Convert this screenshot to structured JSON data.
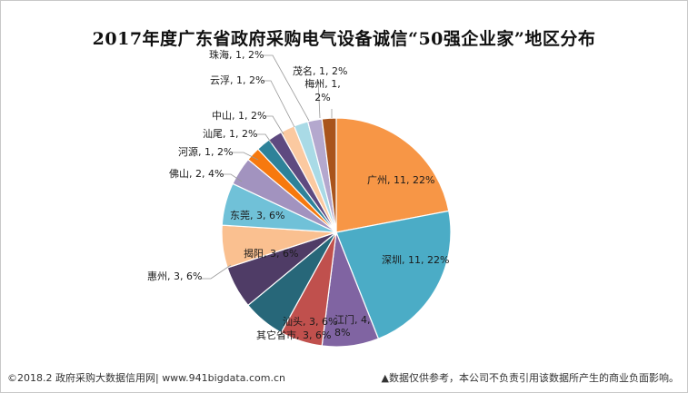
{
  "chart_data": {
    "type": "pie",
    "title": "2017年度广东省政府采购电气设备诚信“50强企业家”地区分布",
    "series": [
      {
        "category": "广州",
        "value": 11,
        "percent": "22%",
        "color": "#F79646",
        "label": "广州, 11, 22%"
      },
      {
        "category": "深圳",
        "value": 11,
        "percent": "22%",
        "color": "#4BACC6",
        "label": "深圳, 11, 22%"
      },
      {
        "category": "江门",
        "value": 4,
        "percent": "8%",
        "color": "#8064A2",
        "label": "江门, 4, 8%"
      },
      {
        "category": "汕头",
        "value": 3,
        "percent": "6%",
        "color": "#C0504D",
        "label": "汕头, 3, 6%"
      },
      {
        "category": "其它省市",
        "value": 3,
        "percent": "6%",
        "color": "#276779",
        "label": "其它省市, 3, 6%"
      },
      {
        "category": "惠州",
        "value": 3,
        "percent": "6%",
        "color": "#4F3C66",
        "label": "惠州, 3, 6%"
      },
      {
        "category": "揭阳",
        "value": 3,
        "percent": "6%",
        "color": "#FAC090",
        "label": "揭阳, 3, 6%"
      },
      {
        "category": "东莞",
        "value": 3,
        "percent": "6%",
        "color": "#70C1D8",
        "label": "东莞, 3, 6%"
      },
      {
        "category": "佛山",
        "value": 2,
        "percent": "4%",
        "color": "#A293BF",
        "label": "佛山, 2, 4%"
      },
      {
        "category": "河源",
        "value": 1,
        "percent": "2%",
        "color": "#F7790E",
        "label": "河源, 1, 2%"
      },
      {
        "category": "汕尾",
        "value": 1,
        "percent": "2%",
        "color": "#2E8299",
        "label": "汕尾, 1, 2%"
      },
      {
        "category": "中山",
        "value": 1,
        "percent": "2%",
        "color": "#5E4A80",
        "label": "中山, 1, 2%"
      },
      {
        "category": "云浮",
        "value": 1,
        "percent": "2%",
        "color": "#FBC9A0",
        "label": "云浮, 1, 2%"
      },
      {
        "category": "珠海",
        "value": 1,
        "percent": "2%",
        "color": "#A9DAE6",
        "label": "珠海, 1, 2%"
      },
      {
        "category": "茂名",
        "value": 1,
        "percent": "2%",
        "color": "#B4A8CE",
        "label": "茂名, 1, 2%"
      },
      {
        "category": "梅州",
        "value": 1,
        "percent": "2%",
        "color": "#A9541C",
        "label": "梅州, 1, 2%"
      }
    ]
  },
  "footer": {
    "source": "©2018.2 政府采购大数据信用网| www.941bigdata.com.cn",
    "disclaimer": "▲数据仅供参考，本公司不负责引用该数据所产生的商业负面影响。"
  }
}
